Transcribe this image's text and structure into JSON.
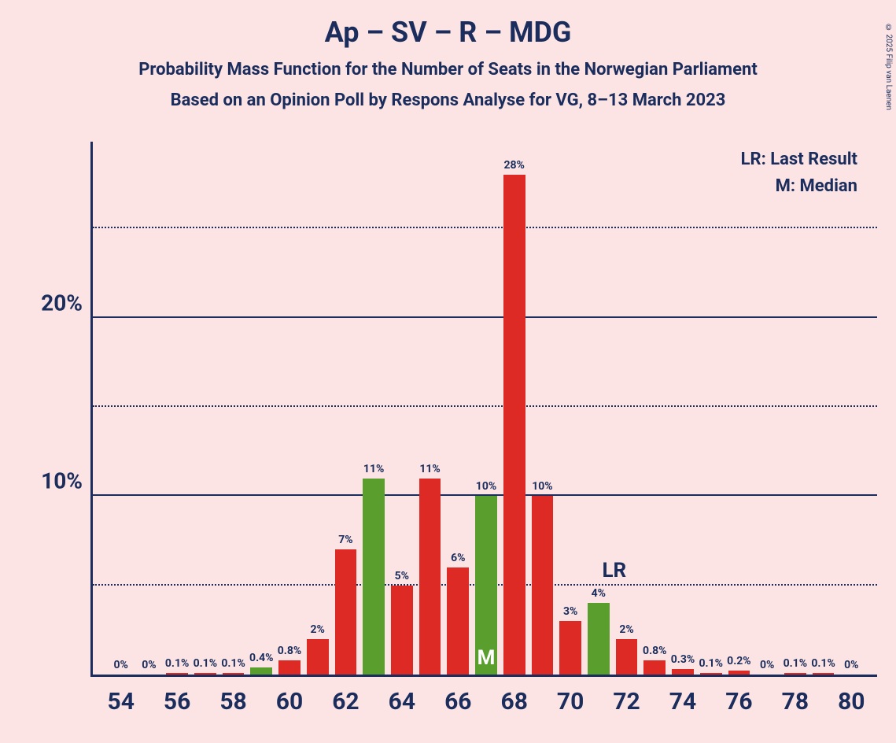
{
  "title": "Ap – SV – R – MDG",
  "subtitle1": "Probability Mass Function for the Number of Seats in the Norwegian Parliament",
  "subtitle2": "Based on an Opinion Poll by Respons Analyse for VG, 8–13 March 2023",
  "legend": {
    "lr": "LR: Last Result",
    "m": "M: Median"
  },
  "copyright": "© 2025 Filip van Laenen",
  "chart": {
    "type": "bar",
    "background_color": "#fce4e4",
    "axis_color": "#1a2d5c",
    "text_color": "#1a2d5c",
    "bar_colors": {
      "red": "#de2a24",
      "green": "#5a9f2e"
    },
    "y": {
      "max": 30,
      "major_ticks": [
        10,
        20
      ],
      "minor_ticks": [
        5,
        15,
        25
      ],
      "labels": [
        "10%",
        "20%"
      ]
    },
    "x": {
      "min": 54,
      "max": 80,
      "tick_step": 2,
      "labels": [
        "54",
        "56",
        "58",
        "60",
        "62",
        "64",
        "66",
        "68",
        "70",
        "72",
        "74",
        "76",
        "78",
        "80"
      ]
    },
    "bars": [
      {
        "x": 54,
        "value": 0,
        "label": "0%",
        "color": "red"
      },
      {
        "x": 55,
        "value": 0,
        "label": "0%",
        "color": "red"
      },
      {
        "x": 56,
        "value": 0.1,
        "label": "0.1%",
        "color": "red"
      },
      {
        "x": 57,
        "value": 0.1,
        "label": "0.1%",
        "color": "red"
      },
      {
        "x": 58,
        "value": 0.1,
        "label": "0.1%",
        "color": "red"
      },
      {
        "x": 59,
        "value": 0.4,
        "label": "0.4%",
        "color": "green"
      },
      {
        "x": 60,
        "value": 0.8,
        "label": "0.8%",
        "color": "red"
      },
      {
        "x": 61,
        "value": 2,
        "label": "2%",
        "color": "red"
      },
      {
        "x": 62,
        "value": 7,
        "label": "7%",
        "color": "red"
      },
      {
        "x": 63,
        "value": 11,
        "label": "11%",
        "color": "green"
      },
      {
        "x": 64,
        "value": 5,
        "label": "5%",
        "color": "red"
      },
      {
        "x": 65,
        "value": 11,
        "label": "11%",
        "color": "red"
      },
      {
        "x": 66,
        "value": 6,
        "label": "6%",
        "color": "red"
      },
      {
        "x": 67,
        "value": 10,
        "label": "10%",
        "color": "green",
        "marker": "M"
      },
      {
        "x": 68,
        "value": 28,
        "label": "28%",
        "color": "red"
      },
      {
        "x": 69,
        "value": 10,
        "label": "10%",
        "color": "red"
      },
      {
        "x": 70,
        "value": 3,
        "label": "3%",
        "color": "red"
      },
      {
        "x": 71,
        "value": 4,
        "label": "4%",
        "color": "green",
        "lr": true
      },
      {
        "x": 72,
        "value": 2,
        "label": "2%",
        "color": "red"
      },
      {
        "x": 73,
        "value": 0.8,
        "label": "0.8%",
        "color": "red"
      },
      {
        "x": 74,
        "value": 0.3,
        "label": "0.3%",
        "color": "red"
      },
      {
        "x": 75,
        "value": 0.1,
        "label": "0.1%",
        "color": "red"
      },
      {
        "x": 76,
        "value": 0.2,
        "label": "0.2%",
        "color": "red"
      },
      {
        "x": 77,
        "value": 0,
        "label": "0%",
        "color": "red"
      },
      {
        "x": 78,
        "value": 0.1,
        "label": "0.1%",
        "color": "red"
      },
      {
        "x": 79,
        "value": 0.1,
        "label": "0.1%",
        "color": "red"
      },
      {
        "x": 80,
        "value": 0,
        "label": "0%",
        "color": "red"
      }
    ],
    "lr_label": "LR",
    "m_label": "M"
  }
}
